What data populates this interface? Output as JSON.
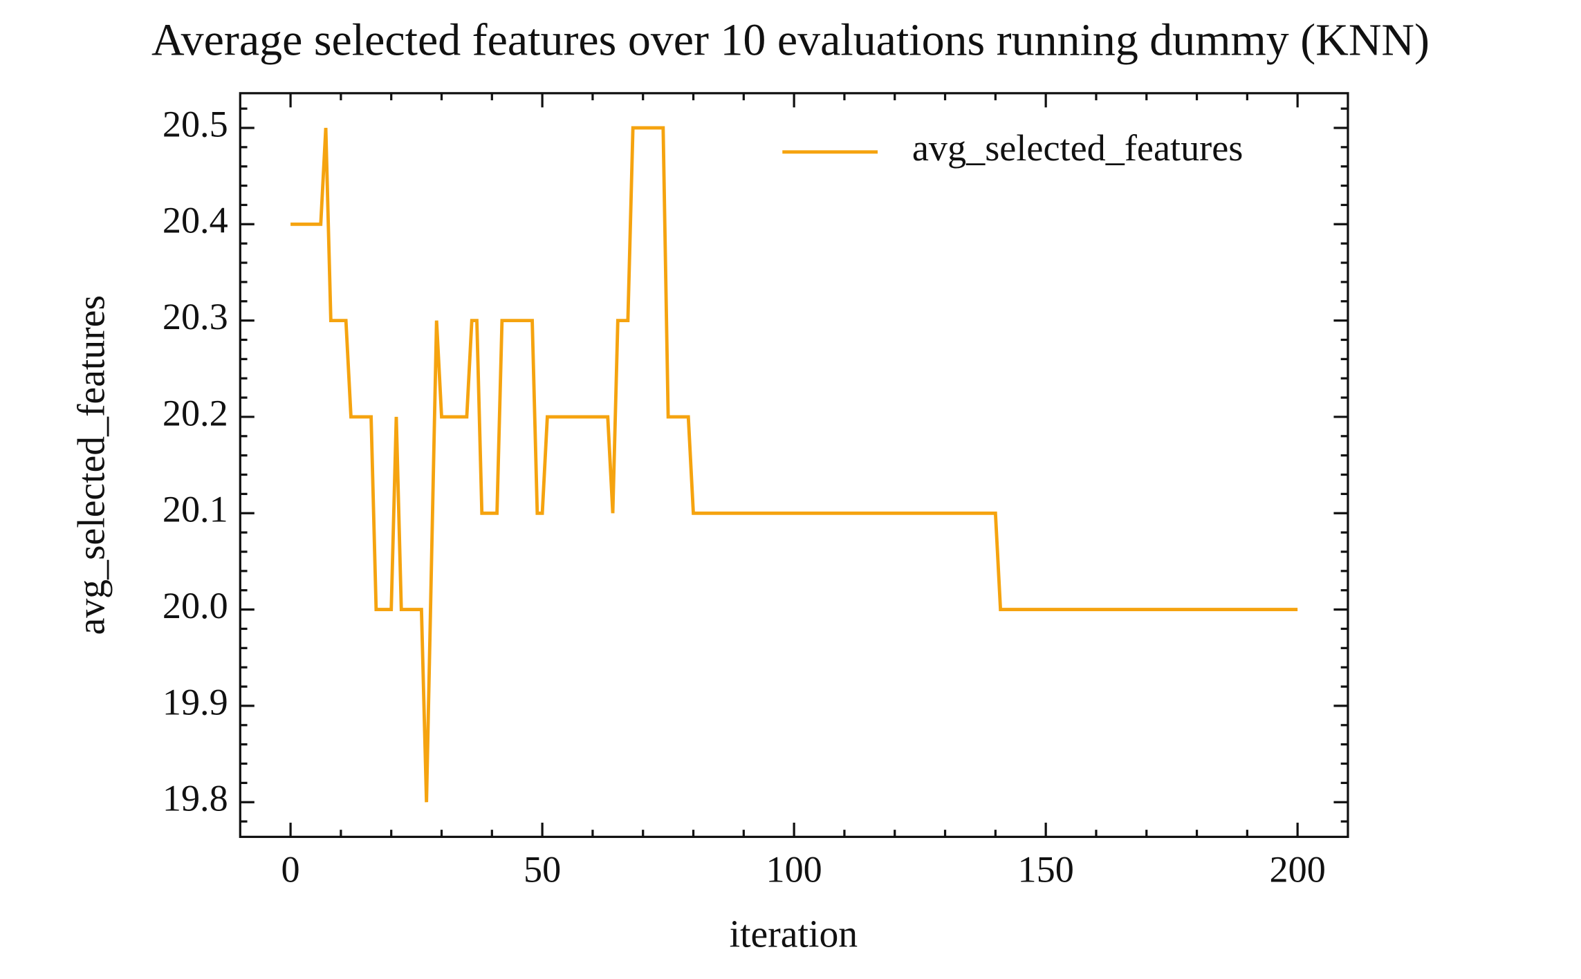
{
  "chart_data": {
    "type": "line",
    "title": "Average selected features over 10 evaluations running dummy (KNN)",
    "xlabel": "iteration",
    "ylabel": "avg_selected_features",
    "x": [
      0,
      6,
      7,
      8,
      11,
      12,
      16,
      17,
      20,
      21,
      22,
      26,
      27,
      29,
      30,
      35,
      36,
      37,
      38,
      41,
      42,
      48,
      49,
      50,
      51,
      63,
      64,
      65,
      67,
      68,
      74,
      75,
      79,
      80,
      140,
      141,
      200
    ],
    "series": [
      {
        "name": "avg_selected_features",
        "color": "#f5a30f",
        "values": [
          20.4,
          20.4,
          20.5,
          20.3,
          20.3,
          20.2,
          20.2,
          20.0,
          20.0,
          20.2,
          20.0,
          20.0,
          19.8,
          20.3,
          20.2,
          20.2,
          20.3,
          20.3,
          20.1,
          20.1,
          20.3,
          20.3,
          20.1,
          20.1,
          20.2,
          20.2,
          20.1,
          20.3,
          20.3,
          20.5,
          20.5,
          20.2,
          20.2,
          20.1,
          20.1,
          20.0,
          20.0
        ]
      }
    ],
    "xlim": [
      -10,
      210
    ],
    "ylim": [
      19.764,
      20.536
    ],
    "xticks": [
      0,
      50,
      100,
      150,
      200
    ],
    "yticks": [
      19.8,
      19.9,
      {
        "value": 20,
        "label": "20.0"
      },
      20.1,
      20.2,
      20.3,
      20.4,
      20.5
    ],
    "legend": "upper right"
  }
}
